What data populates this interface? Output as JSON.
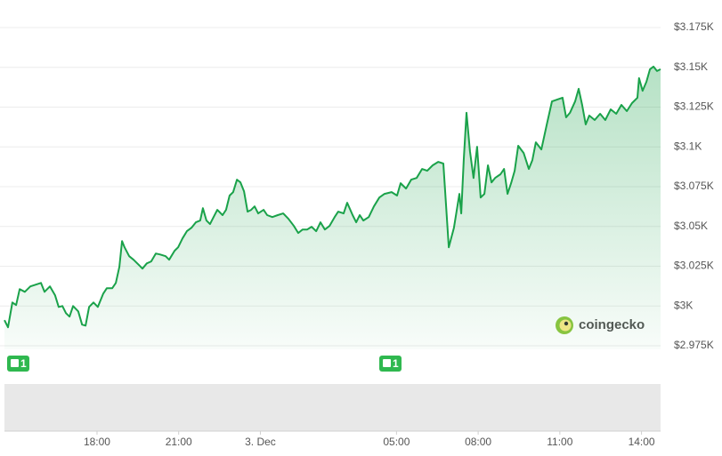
{
  "chart_data": {
    "type": "line",
    "color": "#1aa24a",
    "watermark": "coingecko",
    "grid": true,
    "xlim": [
      14.6,
      38.7
    ],
    "xticks": [
      {
        "value": 18,
        "label": "18:00"
      },
      {
        "value": 21,
        "label": "21:00"
      },
      {
        "value": 24,
        "label": "3. Dec"
      },
      {
        "value": 29,
        "label": "05:00"
      },
      {
        "value": 32,
        "label": "08:00"
      },
      {
        "value": 35,
        "label": "11:00"
      },
      {
        "value": 38,
        "label": "14:00"
      }
    ],
    "ylim": [
      2975,
      3175
    ],
    "yticks": [
      {
        "value": 2975,
        "label": "$2.975K"
      },
      {
        "value": 3000,
        "label": "$3K"
      },
      {
        "value": 3025,
        "label": "$3.025K"
      },
      {
        "value": 3050,
        "label": "$3.05K"
      },
      {
        "value": 3075,
        "label": "$3.075K"
      },
      {
        "value": 3100,
        "label": "$3.1K"
      },
      {
        "value": 3125,
        "label": "$3.125K"
      },
      {
        "value": 3150,
        "label": "$3.15K"
      },
      {
        "value": 3175,
        "label": "$3.175K"
      }
    ],
    "events": [
      {
        "x": 15.09,
        "count": 1
      },
      {
        "x": 28.76,
        "count": 1
      }
    ],
    "x": [
      14.6,
      14.73,
      14.89,
      15.03,
      15.16,
      15.35,
      15.55,
      15.74,
      15.94,
      16.07,
      16.27,
      16.46,
      16.59,
      16.73,
      16.86,
      16.99,
      17.12,
      17.31,
      17.45,
      17.58,
      17.71,
      17.87,
      18.03,
      18.23,
      18.36,
      18.56,
      18.69,
      18.82,
      18.92,
      19.01,
      19.18,
      19.34,
      19.54,
      19.67,
      19.83,
      19.99,
      20.16,
      20.32,
      20.52,
      20.65,
      20.85,
      20.98,
      21.14,
      21.3,
      21.47,
      21.63,
      21.79,
      21.89,
      22.02,
      22.15,
      22.28,
      22.42,
      22.61,
      22.74,
      22.87,
      23.0,
      23.14,
      23.27,
      23.4,
      23.53,
      23.66,
      23.79,
      23.92,
      24.12,
      24.25,
      24.44,
      24.64,
      24.84,
      25.03,
      25.23,
      25.39,
      25.55,
      25.72,
      25.88,
      26.05,
      26.21,
      26.37,
      26.54,
      26.73,
      26.86,
      27.06,
      27.19,
      27.39,
      27.52,
      27.65,
      27.78,
      27.98,
      28.17,
      28.37,
      28.56,
      28.82,
      29.02,
      29.15,
      29.35,
      29.54,
      29.74,
      29.94,
      30.13,
      30.33,
      30.53,
      30.72,
      30.92,
      31.11,
      31.31,
      31.38,
      31.47,
      31.57,
      31.7,
      31.83,
      31.96,
      32.09,
      32.23,
      32.36,
      32.49,
      32.62,
      32.82,
      32.95,
      33.08,
      33.21,
      33.34,
      33.47,
      33.67,
      33.86,
      33.99,
      34.12,
      34.32,
      34.52,
      34.71,
      34.91,
      35.1,
      35.23,
      35.37,
      35.56,
      35.69,
      35.82,
      35.95,
      36.08,
      36.28,
      36.48,
      36.67,
      36.87,
      37.07,
      37.26,
      37.46,
      37.65,
      37.85,
      37.91,
      38.04,
      38.18,
      38.31,
      38.44,
      38.57,
      38.7
    ],
    "values": [
      2991.1,
      2986.6,
      3002.2,
      3000.6,
      3010.6,
      3008.9,
      3012.3,
      3013.4,
      3014.5,
      3008.9,
      3012.3,
      3006.7,
      2999.4,
      3000.0,
      2995.5,
      2993.3,
      3000.0,
      2996.6,
      2988.3,
      2987.7,
      2999.4,
      3002.2,
      2999.4,
      3007.8,
      3011.2,
      3011.2,
      3014.5,
      3024.6,
      3040.8,
      3036.9,
      3031.3,
      3029.1,
      3025.7,
      3023.5,
      3026.8,
      3028.0,
      3033.0,
      3032.4,
      3031.3,
      3029.1,
      3034.7,
      3036.9,
      3042.5,
      3047.0,
      3049.2,
      3052.6,
      3053.7,
      3061.5,
      3053.7,
      3051.5,
      3055.9,
      3060.4,
      3057.1,
      3060.4,
      3069.4,
      3071.6,
      3079.4,
      3077.7,
      3072.1,
      3059.3,
      3060.4,
      3062.6,
      3058.2,
      3060.4,
      3057.1,
      3055.9,
      3057.1,
      3058.2,
      3054.8,
      3050.3,
      3045.9,
      3048.1,
      3048.1,
      3049.8,
      3047.0,
      3052.6,
      3048.1,
      3050.3,
      3055.9,
      3059.3,
      3058.2,
      3064.9,
      3057.1,
      3052.6,
      3057.1,
      3053.7,
      3055.9,
      3062.6,
      3068.2,
      3070.5,
      3071.6,
      3069.4,
      3077.2,
      3073.8,
      3079.4,
      3080.5,
      3086.1,
      3085.0,
      3088.4,
      3090.6,
      3089.5,
      3036.9,
      3049.2,
      3070.5,
      3058.2,
      3091.7,
      3121.4,
      3097.3,
      3080.5,
      3100.1,
      3068.2,
      3070.5,
      3088.4,
      3077.7,
      3080.5,
      3082.8,
      3086.1,
      3070.5,
      3077.2,
      3085.0,
      3100.7,
      3096.2,
      3086.1,
      3091.7,
      3102.9,
      3098.4,
      3114.1,
      3128.6,
      3129.8,
      3130.9,
      3118.6,
      3121.4,
      3128.6,
      3136.5,
      3126.4,
      3114.1,
      3119.7,
      3116.9,
      3120.8,
      3116.9,
      3123.6,
      3120.8,
      3126.4,
      3122.5,
      3127.5,
      3130.9,
      3143.2,
      3135.3,
      3140.9,
      3148.8,
      3150.5,
      3147.7,
      3148.8
    ]
  }
}
